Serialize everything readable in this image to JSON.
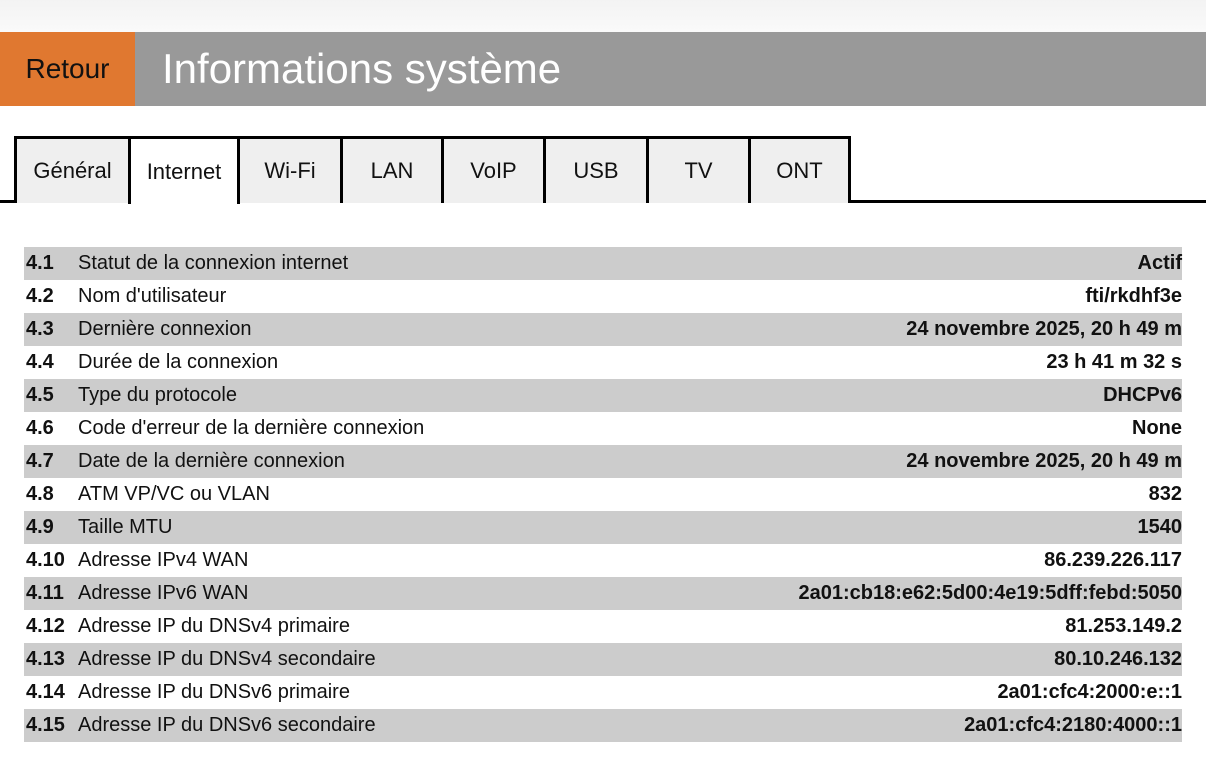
{
  "header": {
    "back_label": "Retour",
    "title": "Informations système"
  },
  "colors": {
    "accent": "#e07830",
    "header_bg": "#999999",
    "row_alt": "#cccccc"
  },
  "tabs": [
    {
      "label": "Général"
    },
    {
      "label": "Internet",
      "active": true
    },
    {
      "label": "Wi-Fi"
    },
    {
      "label": "LAN"
    },
    {
      "label": "VoIP"
    },
    {
      "label": "USB"
    },
    {
      "label": "TV"
    },
    {
      "label": "ONT"
    }
  ],
  "rows": [
    {
      "num": "4.1",
      "label": "Statut de la connexion internet",
      "value": "Actif"
    },
    {
      "num": "4.2",
      "label": "Nom d'utilisateur",
      "value": "fti/rkdhf3e"
    },
    {
      "num": "4.3",
      "label": "Dernière connexion",
      "value": "24 novembre 2025, 20 h 49 m"
    },
    {
      "num": "4.4",
      "label": "Durée de la connexion",
      "value": "23 h 41 m 32 s"
    },
    {
      "num": "4.5",
      "label": "Type du protocole",
      "value": "DHCPv6"
    },
    {
      "num": "4.6",
      "label": "Code d'erreur de la dernière connexion",
      "value": "None"
    },
    {
      "num": "4.7",
      "label": "Date de la dernière connexion",
      "value": "24 novembre 2025, 20 h 49 m"
    },
    {
      "num": "4.8",
      "label": "ATM VP/VC ou VLAN",
      "value": "832"
    },
    {
      "num": "4.9",
      "label": "Taille MTU",
      "value": "1540"
    },
    {
      "num": "4.10",
      "label": "Adresse IPv4 WAN",
      "value": "86.239.226.117"
    },
    {
      "num": "4.11",
      "label": "Adresse IPv6 WAN",
      "value": "2a01:cb18:e62:5d00:4e19:5dff:febd:5050"
    },
    {
      "num": "4.12",
      "label": "Adresse IP du DNSv4 primaire",
      "value": "81.253.149.2"
    },
    {
      "num": "4.13",
      "label": "Adresse IP du DNSv4 secondaire",
      "value": "80.10.246.132"
    },
    {
      "num": "4.14",
      "label": "Adresse IP du DNSv6 primaire",
      "value": "2a01:cfc4:2000:e::1"
    },
    {
      "num": "4.15",
      "label": "Adresse IP du DNSv6 secondaire",
      "value": "2a01:cfc4:2180:4000::1"
    }
  ]
}
